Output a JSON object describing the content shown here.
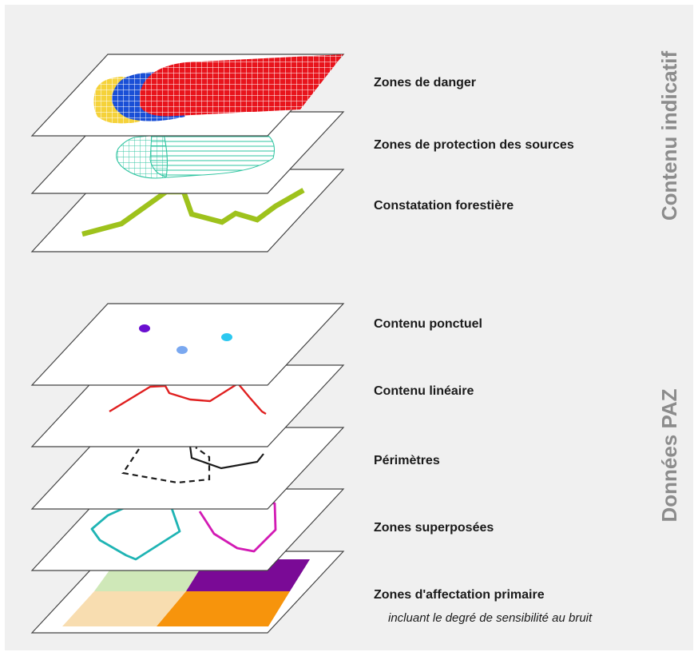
{
  "groups": {
    "indicative": "Contenu indicatif",
    "paz": "Données PAZ"
  },
  "layers": {
    "danger": "Zones de danger",
    "protection": "Zones de protection des sources",
    "forest": "Constatation forestière",
    "points": "Contenu ponctuel",
    "lines": "Contenu linéaire",
    "perimeters": "Périmètres",
    "overlay": "Zones superposées",
    "primary": "Zones d'affectation primaire",
    "primary_note": "incluant le degré de sensibilité au bruit"
  },
  "colors": {
    "background": "#f0f0f0",
    "danger_red": "#e8141c",
    "danger_blue": "#1a4fd6",
    "danger_yellow": "#f5d23a",
    "protection_teal": "#2ec4a0",
    "forest_green": "#9ec21c",
    "point_violet": "#6a0fd0",
    "point_light_blue": "#7aa8f0",
    "point_cyan": "#2cc8f0",
    "line_red": "#e02020",
    "perimeter_black": "#1a1a1a",
    "overlay_teal": "#1fb4b4",
    "overlay_magenta": "#d21ab4",
    "zone_green": "#cfe8b8",
    "zone_purple": "#7a0a96",
    "zone_beige": "#f8ddb0",
    "zone_orange": "#f7940c",
    "side_text": "#8c8c8c"
  }
}
